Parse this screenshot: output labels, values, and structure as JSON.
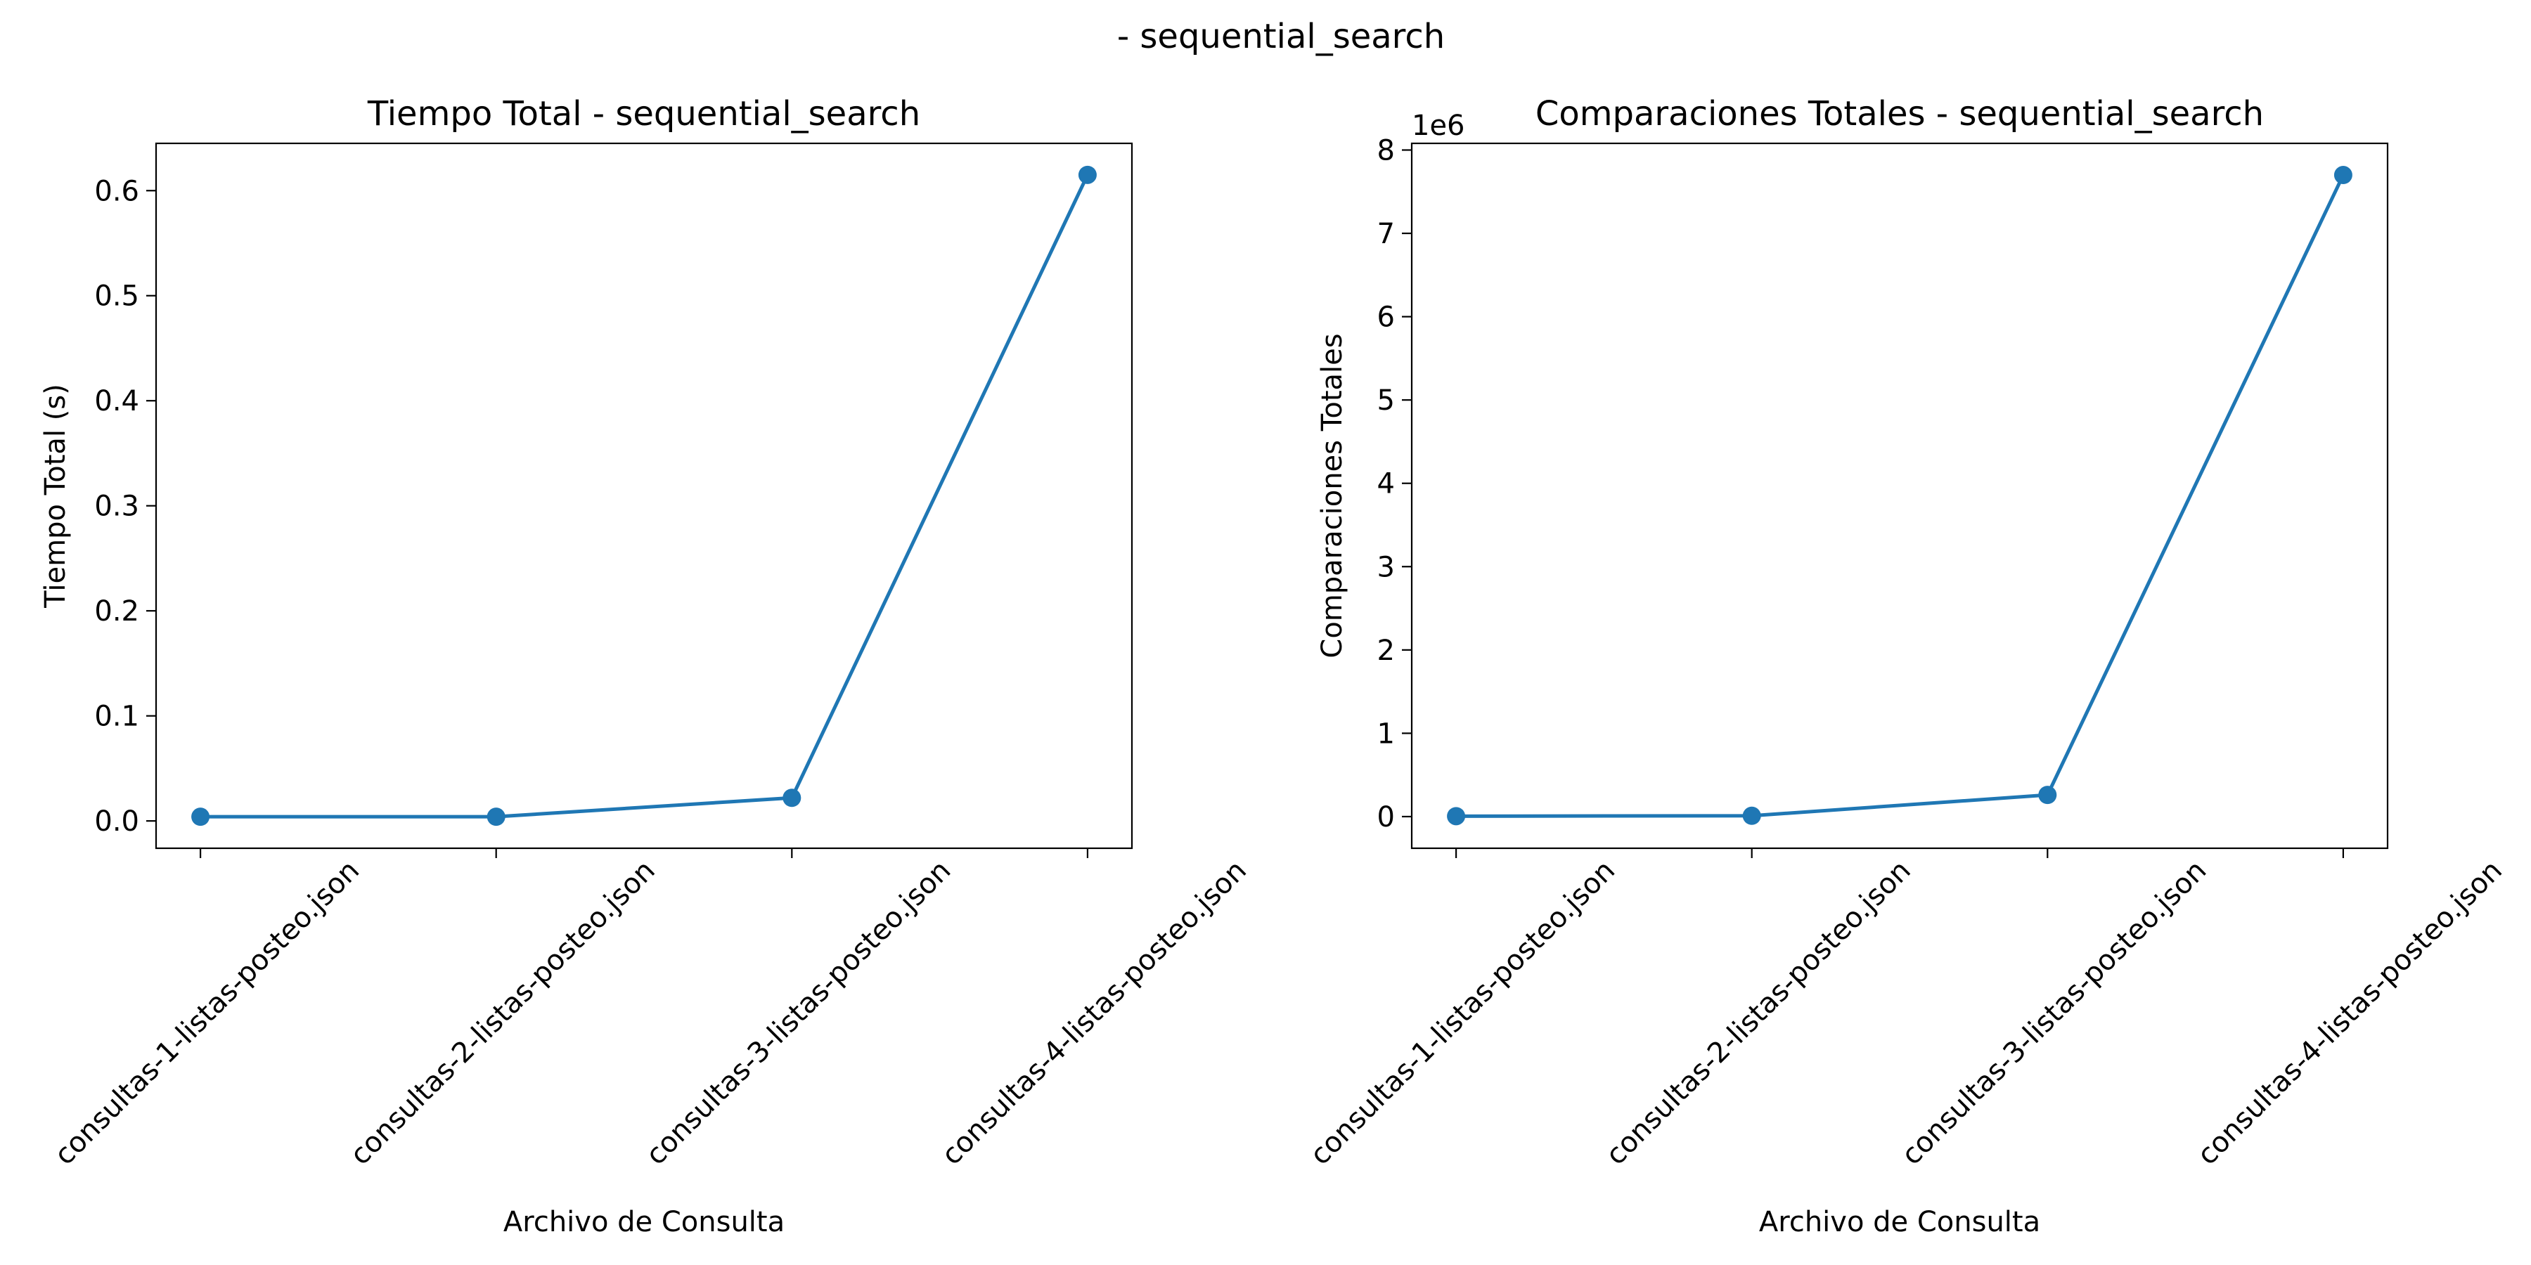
{
  "figure": {
    "suptitle": "- sequential_search"
  },
  "chart_data": [
    {
      "type": "line",
      "title": "Tiempo Total - sequential_search",
      "xlabel": "Archivo de Consulta",
      "ylabel": "Tiempo Total (s)",
      "categories": [
        "consultas-1-listas-posteo.json",
        "consultas-2-listas-posteo.json",
        "consultas-3-listas-posteo.json",
        "consultas-4-listas-posteo.json"
      ],
      "series": [
        {
          "values": [
            0.004,
            0.004,
            0.022,
            0.615
          ]
        }
      ],
      "ylim": [
        -0.026,
        0.645
      ],
      "yticks": [
        0.0,
        0.1,
        0.2,
        0.3,
        0.4,
        0.5,
        0.6
      ],
      "ytick_labels": [
        "0.0",
        "0.1",
        "0.2",
        "0.3",
        "0.4",
        "0.5",
        "0.6"
      ],
      "offset_label": "",
      "marker": "circle",
      "color": "#1f77b4",
      "grid": false
    },
    {
      "type": "line",
      "title": "Comparaciones Totales - sequential_search",
      "xlabel": "Archivo de Consulta",
      "ylabel": "Comparaciones Totales",
      "categories": [
        "consultas-1-listas-posteo.json",
        "consultas-2-listas-posteo.json",
        "consultas-3-listas-posteo.json",
        "consultas-4-listas-posteo.json"
      ],
      "series": [
        {
          "values": [
            5000,
            10000,
            260000,
            7700000
          ]
        }
      ],
      "ylim": [
        -380000,
        8080000
      ],
      "yticks": [
        0,
        1000000,
        2000000,
        3000000,
        4000000,
        5000000,
        6000000,
        7000000,
        8000000
      ],
      "ytick_labels": [
        "0",
        "1",
        "2",
        "3",
        "4",
        "5",
        "6",
        "7",
        "8"
      ],
      "offset_label": "1e6",
      "marker": "circle",
      "color": "#1f77b4",
      "grid": false
    }
  ]
}
